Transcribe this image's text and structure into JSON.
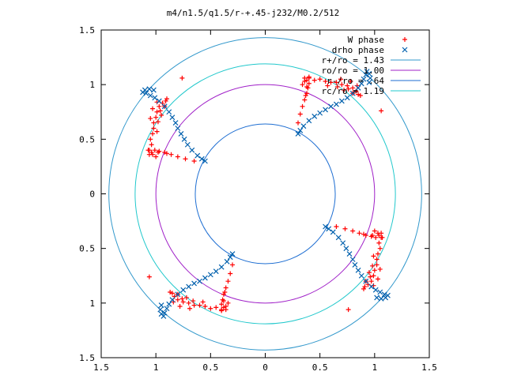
{
  "chart_data": {
    "type": "scatter",
    "title": "m4/n1.5/q1.5/r-+.45-j232/M0.2/512",
    "xlabel": "",
    "ylabel": "",
    "xlim": [
      -1.5,
      1.5
    ],
    "ylim": [
      -1.5,
      1.5
    ],
    "x_ticks": [
      -1.5,
      -1,
      -0.5,
      0,
      0.5,
      1,
      1.5
    ],
    "y_ticks": [
      -1.5,
      -1,
      -0.5,
      0,
      0.5,
      1,
      1.5
    ],
    "x_tick_labels": [
      "1.5",
      "1",
      "0.5",
      "0",
      "0.5",
      "1",
      "1.5"
    ],
    "y_tick_labels": [
      "1.5",
      "1",
      "0.5",
      "0",
      "0.5",
      "1",
      "1.5"
    ],
    "grid": false,
    "legend_position": "top-right",
    "symmetry": 4,
    "series": [
      {
        "name": "W phase",
        "marker": "plus",
        "color": "#ff0000",
        "points": [
          [
            0.3,
            0.65
          ],
          [
            0.32,
            0.73
          ],
          [
            0.34,
            0.8
          ],
          [
            0.36,
            0.86
          ],
          [
            0.38,
            0.92
          ],
          [
            0.39,
            0.97
          ],
          [
            0.4,
            1.01
          ],
          [
            0.38,
            1.04
          ],
          [
            0.36,
            1.06
          ],
          [
            0.4,
            1.07
          ],
          [
            0.36,
            1.03
          ],
          [
            0.34,
            1.0
          ],
          [
            0.38,
            0.98
          ],
          [
            0.37,
            0.9
          ],
          [
            0.4,
            1.06
          ],
          [
            0.45,
            1.04
          ],
          [
            0.5,
            1.05
          ],
          [
            0.55,
            1.03
          ],
          [
            0.6,
            1.02
          ],
          [
            0.65,
            1.02
          ],
          [
            0.7,
            1.0
          ],
          [
            0.75,
            0.99
          ],
          [
            0.8,
            0.97
          ],
          [
            0.83,
            0.94
          ],
          [
            0.85,
            0.91
          ],
          [
            0.87,
            0.9
          ],
          [
            0.78,
            1.03
          ],
          [
            0.72,
            0.95
          ],
          [
            0.84,
            0.99
          ],
          [
            0.76,
            0.96
          ],
          [
            0.8,
            0.92
          ],
          [
            0.66,
            0.98
          ],
          [
            0.69,
            1.05
          ],
          [
            0.57,
            0.99
          ],
          [
            1.06,
            0.76
          ]
        ]
      },
      {
        "name": "drho phase",
        "marker": "cross",
        "color": "#0060ad",
        "points": [
          [
            0.3,
            0.55
          ],
          [
            0.32,
            0.58
          ],
          [
            0.35,
            0.62
          ],
          [
            0.4,
            0.67
          ],
          [
            0.45,
            0.71
          ],
          [
            0.5,
            0.74
          ],
          [
            0.55,
            0.77
          ],
          [
            0.6,
            0.8
          ],
          [
            0.65,
            0.82
          ],
          [
            0.7,
            0.85
          ],
          [
            0.75,
            0.88
          ],
          [
            0.8,
            0.92
          ],
          [
            0.85,
            0.97
          ],
          [
            0.88,
            1.01
          ],
          [
            0.9,
            1.05
          ],
          [
            0.92,
            1.09
          ],
          [
            0.93,
            1.12
          ],
          [
            0.95,
            1.1
          ],
          [
            0.96,
            1.06
          ],
          [
            0.95,
            1.02
          ]
        ]
      }
    ],
    "reference_circles": [
      {
        "name": "r+/ro = 1.43",
        "radius": 1.43,
        "color": "#3399cc"
      },
      {
        "name": "ro/ro = 1.00",
        "radius": 1.0,
        "color": "#a020c8"
      },
      {
        "name": "r-/ro = .64",
        "radius": 0.64,
        "color": "#1e6ed2"
      },
      {
        "name": "rc/ro = 1.19",
        "radius": 1.19,
        "color": "#22c8cc"
      }
    ]
  }
}
